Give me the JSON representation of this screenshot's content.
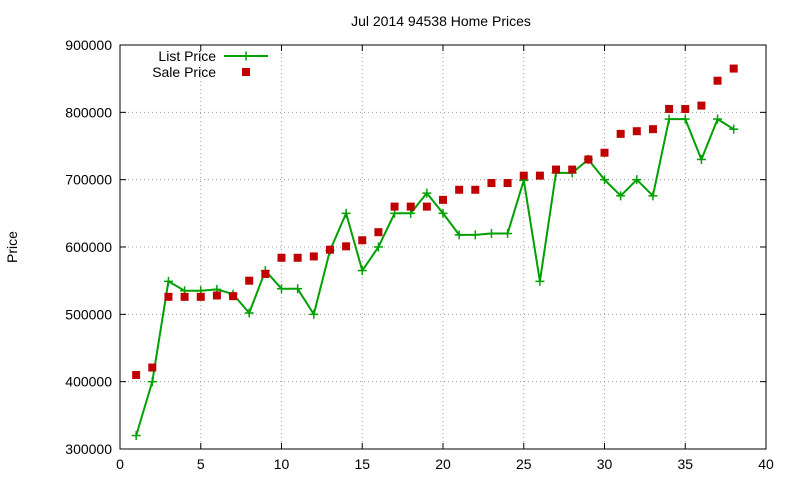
{
  "chart_data": {
    "type": "line",
    "title": "Jul 2014 94538 Home Prices",
    "xlabel": "",
    "ylabel": "Price",
    "xlim": [
      0,
      40
    ],
    "ylim": [
      300000,
      900000
    ],
    "xticks": [
      0,
      5,
      10,
      15,
      20,
      25,
      30,
      35,
      40
    ],
    "yticks": [
      300000,
      400000,
      500000,
      600000,
      700000,
      800000,
      900000
    ],
    "grid": true,
    "legend_position": "top-left",
    "series": [
      {
        "name": "List Price",
        "style": "line-with-plus-markers",
        "color": "#00a000",
        "x": [
          1,
          2,
          3,
          4,
          5,
          6,
          7,
          8,
          9,
          10,
          11,
          12,
          13,
          14,
          15,
          16,
          17,
          18,
          19,
          20,
          21,
          22,
          23,
          24,
          25,
          26,
          27,
          28,
          29,
          30,
          31,
          32,
          33,
          34,
          35,
          36,
          37,
          38
        ],
        "y": [
          320000,
          400000,
          549000,
          535000,
          535000,
          537000,
          530000,
          502000,
          565000,
          538000,
          538000,
          500000,
          595000,
          650000,
          565000,
          600000,
          650000,
          650000,
          680000,
          650000,
          618000,
          618000,
          620000,
          620000,
          699000,
          549000,
          710000,
          710000,
          730000,
          700000,
          676000,
          700000,
          676000,
          790000,
          790000,
          730000,
          790000,
          775000
        ]
      },
      {
        "name": "Sale Price",
        "style": "square-markers",
        "color": "#c00000",
        "x": [
          1,
          2,
          3,
          4,
          5,
          6,
          7,
          8,
          9,
          10,
          11,
          12,
          13,
          14,
          15,
          16,
          17,
          18,
          19,
          20,
          21,
          22,
          23,
          24,
          25,
          26,
          27,
          28,
          29,
          30,
          31,
          32,
          33,
          34,
          35,
          36,
          37,
          38
        ],
        "y": [
          410000,
          421000,
          526000,
          526000,
          526000,
          528000,
          527000,
          550000,
          560000,
          584000,
          584000,
          586000,
          596000,
          601000,
          610000,
          622000,
          660000,
          660000,
          660000,
          670000,
          685000,
          685000,
          695000,
          695000,
          706000,
          706000,
          715000,
          715000,
          730000,
          740000,
          768000,
          772000,
          775000,
          805000,
          805000,
          810000,
          847000,
          865000
        ]
      }
    ]
  }
}
